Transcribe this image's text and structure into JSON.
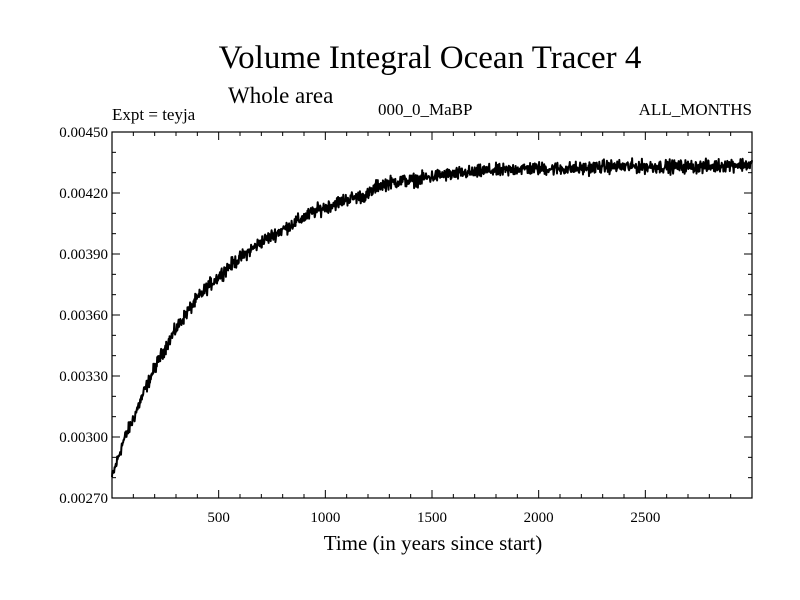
{
  "chart_data": {
    "type": "line",
    "title": "Volume Integral Ocean Tracer 4",
    "subtitle": "Whole area",
    "annotations": {
      "left": "Expt = teyja",
      "center": "000_0_MaBP",
      "right": "ALL_MONTHS"
    },
    "xlabel": "Time (in years since start)",
    "ylabel": "",
    "xlim": [
      0,
      3000
    ],
    "ylim": [
      0.0027,
      0.0045
    ],
    "x_ticks": [
      500,
      1000,
      1500,
      2000,
      2500
    ],
    "y_ticks": [
      "0.00270",
      "0.00300",
      "0.00330",
      "0.00360",
      "0.00390",
      "0.00420",
      "0.00450"
    ],
    "grid": false,
    "series": [
      {
        "name": "Volume Integral Ocean Tracer 4",
        "color": "#000000",
        "x": [
          0,
          50,
          100,
          150,
          200,
          250,
          300,
          350,
          400,
          450,
          500,
          550,
          600,
          650,
          700,
          750,
          800,
          850,
          900,
          950,
          1000,
          1050,
          1100,
          1150,
          1200,
          1250,
          1300,
          1350,
          1400,
          1450,
          1500,
          1550,
          1600,
          1650,
          1700,
          1750,
          1800,
          1850,
          1900,
          1950,
          2000,
          2100,
          2200,
          2300,
          2400,
          2500,
          2600,
          2700,
          2800,
          2900,
          3000
        ],
        "y": [
          0.0028,
          0.00297,
          0.00309,
          0.00322,
          0.00334,
          0.00344,
          0.00353,
          0.00361,
          0.00368,
          0.00374,
          0.00379,
          0.00384,
          0.00388,
          0.00392,
          0.00396,
          0.00399,
          0.00402,
          0.00405,
          0.00408,
          0.00411,
          0.00413,
          0.00415,
          0.00417,
          0.00418,
          0.00419,
          0.00424,
          0.00425,
          0.00426,
          0.00426,
          0.00427,
          0.00428,
          0.00429,
          0.00429,
          0.0043,
          0.0043,
          0.00431,
          0.00431,
          0.00431,
          0.00432,
          0.00432,
          0.00432,
          0.00432,
          0.00432,
          0.00433,
          0.00433,
          0.00433,
          0.00433,
          0.00433,
          0.00433,
          0.00434,
          0.00434
        ],
        "noise_amplitude": 4e-05
      }
    ]
  }
}
